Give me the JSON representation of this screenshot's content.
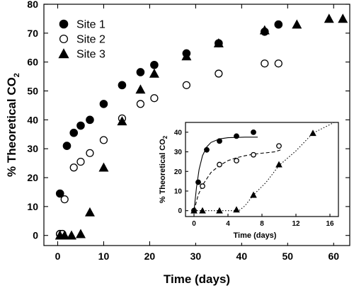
{
  "chart_data": [
    {
      "type": "scatter",
      "xlabel": "Time (days)",
      "ylabel_main": "% Theoretical CO",
      "ylabel_sub": "2",
      "xlim": [
        -3,
        63.5
      ],
      "ylim": [
        -3.5,
        80
      ],
      "xticks": [
        0,
        10,
        20,
        30,
        40,
        50,
        60
      ],
      "yticks": [
        0,
        10,
        20,
        30,
        40,
        50,
        60,
        70,
        80
      ],
      "legend_position": "top-left",
      "series": [
        {
          "name": "Site 1",
          "marker": "filled-circle",
          "points": [
            [
              0.5,
              14.5
            ],
            [
              0.5,
              0.5
            ],
            [
              1,
              0.5
            ],
            [
              2,
              31
            ],
            [
              3.5,
              35.5
            ],
            [
              5,
              38
            ],
            [
              7,
              40
            ],
            [
              10,
              45.5
            ],
            [
              14,
              52
            ],
            [
              18,
              56.5
            ],
            [
              21,
              59
            ],
            [
              28,
              63
            ],
            [
              35,
              66.5
            ],
            [
              45,
              70.5
            ],
            [
              48,
              73
            ]
          ]
        },
        {
          "name": "Site 2",
          "marker": "open-circle",
          "points": [
            [
              0.5,
              0.5
            ],
            [
              1,
              0.5
            ],
            [
              1.5,
              12.5
            ],
            [
              3.5,
              23.5
            ],
            [
              5,
              25.5
            ],
            [
              7,
              28.5
            ],
            [
              10,
              33
            ],
            [
              14,
              40.5
            ],
            [
              18,
              45.5
            ],
            [
              21,
              47.5
            ],
            [
              28,
              52
            ],
            [
              35,
              56
            ],
            [
              45,
              59.5
            ],
            [
              48,
              59.5
            ]
          ]
        },
        {
          "name": "Site 3",
          "marker": "filled-triangle",
          "points": [
            [
              0.5,
              0
            ],
            [
              1.5,
              0
            ],
            [
              3,
              0
            ],
            [
              5,
              0.5
            ],
            [
              7,
              8
            ],
            [
              10,
              23.5
            ],
            [
              14,
              39.5
            ],
            [
              18,
              50.5
            ],
            [
              21,
              56
            ],
            [
              28,
              62
            ],
            [
              35,
              66.5
            ],
            [
              45,
              71
            ],
            [
              52,
              73
            ],
            [
              59,
              75
            ],
            [
              62,
              75
            ]
          ]
        }
      ]
    },
    {
      "type": "scatter",
      "position": "inset-bottom-right",
      "xlabel": "Time (days)",
      "ylabel_main": "% Theoretical CO",
      "ylabel_sub": "2",
      "xlim": [
        -1,
        17
      ],
      "ylim": [
        -3,
        45
      ],
      "xticks": [
        0,
        4,
        8,
        12,
        16
      ],
      "yticks": [
        0,
        10,
        20,
        30,
        40
      ],
      "series": [
        {
          "name": "Site 1",
          "marker": "filled-circle",
          "points": [
            [
              0,
              0
            ],
            [
              0.5,
              14.5
            ],
            [
              1.5,
              31
            ],
            [
              3,
              35.5
            ],
            [
              5,
              38
            ],
            [
              7,
              40
            ]
          ],
          "fit_line": "solid",
          "fit_points": [
            [
              0,
              0
            ],
            [
              0.3,
              12
            ],
            [
              0.6,
              21
            ],
            [
              1,
              28
            ],
            [
              1.5,
              32.5
            ],
            [
              2,
              34.8
            ],
            [
              3,
              36.6
            ],
            [
              4,
              37.2
            ],
            [
              6,
              37.5
            ],
            [
              7.5,
              37.5
            ]
          ]
        },
        {
          "name": "Site 2",
          "marker": "open-circle",
          "points": [
            [
              0,
              0
            ],
            [
              1,
              12.5
            ],
            [
              3,
              23.5
            ],
            [
              5,
              25.5
            ],
            [
              7,
              28.5
            ],
            [
              10,
              33
            ]
          ],
          "fit_line": "dashed",
          "fit_points": [
            [
              0,
              0
            ],
            [
              0.5,
              8
            ],
            [
              1,
              13
            ],
            [
              2,
              19.5
            ],
            [
              3,
              23
            ],
            [
              4,
              25.5
            ],
            [
              5,
              27
            ],
            [
              6,
              28
            ],
            [
              7,
              28.8
            ],
            [
              8,
              29.3
            ],
            [
              9.5,
              30
            ],
            [
              10.2,
              31
            ]
          ]
        },
        {
          "name": "Site 3",
          "marker": "filled-triangle",
          "points": [
            [
              0,
              0
            ],
            [
              1,
              0
            ],
            [
              3,
              0
            ],
            [
              5,
              0.5
            ],
            [
              7,
              8
            ],
            [
              10,
              23.5
            ],
            [
              14,
              39.5
            ]
          ],
          "fit_line": "dotted",
          "fit_points": [
            [
              0,
              0
            ],
            [
              5.3,
              0
            ],
            [
              6,
              2.5
            ],
            [
              7,
              8
            ],
            [
              8.5,
              14.5
            ],
            [
              10,
              23
            ],
            [
              12,
              30.5
            ],
            [
              14,
              39.5
            ],
            [
              16.5,
              47
            ]
          ]
        }
      ]
    }
  ]
}
